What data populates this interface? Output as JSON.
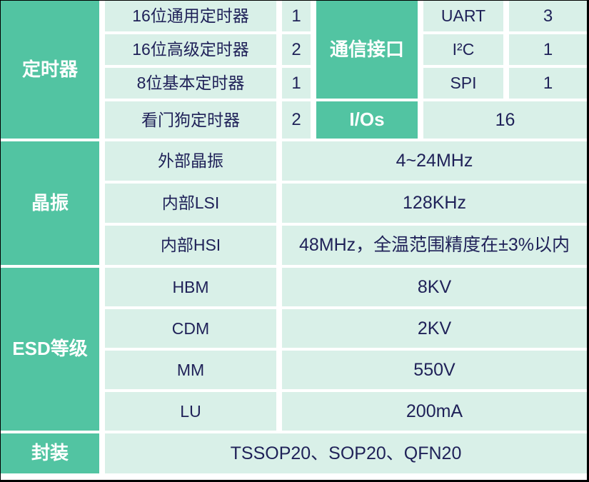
{
  "colors": {
    "header_green": "#52c4a2",
    "cell_mint": "#d9f0e8",
    "text_navy": "#1f2158",
    "header_text": "#ffffff",
    "divider_white": "#ffffff"
  },
  "timer": {
    "header": "定时器",
    "rows": [
      {
        "label": "16位通用定时器",
        "count": "1"
      },
      {
        "label": "16位高级定时器",
        "count": "2"
      },
      {
        "label": "8位基本定时器",
        "count": "1"
      },
      {
        "label": "看门狗定时器",
        "count": "2"
      }
    ]
  },
  "comm": {
    "header": "通信接口",
    "rows": [
      {
        "label": "UART",
        "count": "3"
      },
      {
        "label": "I²C",
        "count": "1"
      },
      {
        "label": "SPI",
        "count": "1"
      }
    ]
  },
  "io": {
    "header": "I/Os",
    "count": "16"
  },
  "osc": {
    "header": "晶振",
    "rows": [
      {
        "label": "外部晶振",
        "value": "4~24MHz"
      },
      {
        "label": "内部LSI",
        "value": "128KHz"
      },
      {
        "label": "内部HSI",
        "value": "48MHz，全温范围精度在±3%以内"
      }
    ]
  },
  "esd": {
    "header": "ESD等级",
    "rows": [
      {
        "label": "HBM",
        "value": "8KV"
      },
      {
        "label": "CDM",
        "value": "2KV"
      },
      {
        "label": "MM",
        "value": "550V"
      },
      {
        "label": "LU",
        "value": "200mA"
      }
    ]
  },
  "package": {
    "header": "封装",
    "value": "TSSOP20、SOP20、QFN20"
  }
}
